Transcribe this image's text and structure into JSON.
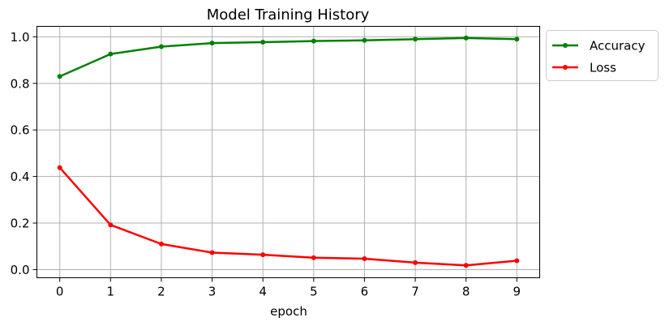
{
  "chart_data": {
    "type": "line",
    "title": "Model Training History",
    "xlabel": "epoch",
    "ylabel": "",
    "x": [
      0,
      1,
      2,
      3,
      4,
      5,
      6,
      7,
      8,
      9
    ],
    "xlim": [
      -0.45,
      9.45
    ],
    "ylim": [
      -0.035,
      1.045
    ],
    "xticks": [
      "0",
      "1",
      "2",
      "3",
      "4",
      "5",
      "6",
      "7",
      "8",
      "9"
    ],
    "yticks": [
      "0.0",
      "0.2",
      "0.4",
      "0.6",
      "0.8",
      "1.0"
    ],
    "grid": true,
    "legend": "outside-top-right",
    "series": [
      {
        "name": "Accuracy",
        "color": "#008000",
        "values": [
          0.83,
          0.926,
          0.958,
          0.973,
          0.977,
          0.982,
          0.985,
          0.99,
          0.995,
          0.99
        ]
      },
      {
        "name": "Loss",
        "color": "#ff0000",
        "values": [
          0.438,
          0.192,
          0.11,
          0.073,
          0.064,
          0.051,
          0.047,
          0.03,
          0.018,
          0.038
        ]
      }
    ]
  }
}
